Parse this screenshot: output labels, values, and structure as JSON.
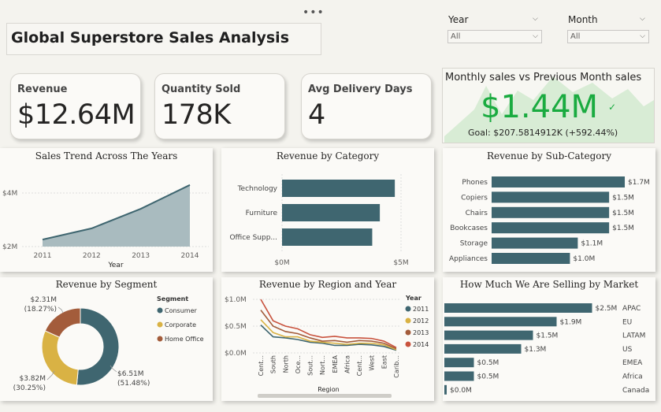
{
  "title": "Global Superstore Sales Analysis",
  "more_icon": "more-options-icon",
  "filters": [
    {
      "label": "Year",
      "value": "All"
    },
    {
      "label": "Month",
      "value": "All"
    }
  ],
  "kpis": [
    {
      "label": "Revenue",
      "value": "$12.64M"
    },
    {
      "label": "Quantity Sold",
      "value": "178K"
    },
    {
      "label": "Avg Delivery Days",
      "value": "4"
    }
  ],
  "monthly": {
    "title": "Monthly sales vs Previous Month sales",
    "value": "$1.44M",
    "goal": "Goal: $207.5814912K (+592.44%)",
    "indicator_icon": "checkmark-icon",
    "accent": "#1aab40"
  },
  "colors": {
    "primary": "#3f6670",
    "yellow": "#d9b244",
    "brown": "#a35c3b",
    "red": "#c9533e",
    "area": "#a9bbbf"
  },
  "chart_data": [
    {
      "id": "sales-trend",
      "type": "area",
      "title": "Sales Trend Across The Years",
      "xlabel": "Year",
      "ylabel": "",
      "x": [
        "2011",
        "2012",
        "2013",
        "2014"
      ],
      "values": [
        2.26,
        2.68,
        3.41,
        4.3
      ],
      "yticks": [
        "$2M",
        "$4M"
      ],
      "ylim": [
        2,
        4
      ]
    },
    {
      "id": "revenue-category",
      "type": "bar",
      "title": "Revenue by Category",
      "categories": [
        "Technology",
        "Furniture",
        "Office Supp..."
      ],
      "values": [
        4.74,
        4.11,
        3.79
      ],
      "xticks": [
        "$0M",
        "$5M"
      ],
      "xlim": [
        0,
        5
      ]
    },
    {
      "id": "revenue-subcategory",
      "type": "bar",
      "title": "Revenue by Sub-Category",
      "categories": [
        "Phones",
        "Copiers",
        "Chairs",
        "Bookcases",
        "Storage",
        "Appliances"
      ],
      "values": [
        1.7,
        1.5,
        1.5,
        1.5,
        1.1,
        1.0
      ],
      "labels": [
        "$1.7M",
        "$1.5M",
        "$1.5M",
        "$1.5M",
        "$1.1M",
        "$1.0M"
      ],
      "xlim": [
        0,
        1.75
      ]
    },
    {
      "id": "revenue-segment",
      "type": "pie",
      "title": "Revenue by Segment",
      "legend_title": "Segment",
      "slices": [
        {
          "name": "Consumer",
          "value": 6.51,
          "percent": 51.48,
          "label": "$6.51M",
          "pct_label": "(51.48%)",
          "color": "#3f6670"
        },
        {
          "name": "Corporate",
          "value": 3.82,
          "percent": 30.25,
          "label": "$3.82M",
          "pct_label": "(30.25%)",
          "color": "#d9b244"
        },
        {
          "name": "Home Office",
          "value": 2.31,
          "percent": 18.27,
          "label": "$2.31M",
          "pct_label": "(18.27%)",
          "color": "#a35c3b"
        }
      ]
    },
    {
      "id": "revenue-region-year",
      "type": "line",
      "title": "Revenue by Region and Year",
      "xlabel": "Region",
      "legend_title": "Year",
      "categories": [
        "Cent...",
        "South",
        "North",
        "Oce...",
        "Sout...",
        "Nort...",
        "EMEA",
        "Africa",
        "Cent...",
        "West",
        "East",
        "Carib..."
      ],
      "yticks": [
        "$0.0M",
        "$0.5M",
        "$1.0M"
      ],
      "ylim": [
        0,
        1.1
      ],
      "series": [
        {
          "name": "2011",
          "color": "#3f6670",
          "values": [
            0.52,
            0.3,
            0.28,
            0.25,
            0.2,
            0.18,
            0.14,
            0.14,
            0.16,
            0.15,
            0.12,
            0.05
          ]
        },
        {
          "name": "2012",
          "color": "#d9b244",
          "values": [
            0.62,
            0.38,
            0.3,
            0.3,
            0.22,
            0.2,
            0.18,
            0.16,
            0.18,
            0.18,
            0.15,
            0.06
          ]
        },
        {
          "name": "2013",
          "color": "#a35c3b",
          "values": [
            0.8,
            0.5,
            0.4,
            0.36,
            0.28,
            0.22,
            0.23,
            0.2,
            0.23,
            0.22,
            0.18,
            0.08
          ]
        },
        {
          "name": "2014",
          "color": "#c9533e",
          "values": [
            1.0,
            0.6,
            0.5,
            0.45,
            0.34,
            0.29,
            0.31,
            0.28,
            0.28,
            0.27,
            0.22,
            0.1
          ]
        }
      ]
    },
    {
      "id": "selling-by-market",
      "type": "bar",
      "title": "How Much We Are Selling by Market",
      "categories": [
        "APAC",
        "EU",
        "LATAM",
        "US",
        "EMEA",
        "Africa",
        "Canada"
      ],
      "values": [
        2.5,
        1.9,
        1.5,
        1.3,
        0.5,
        0.5,
        0.04
      ],
      "labels": [
        "$2.5M",
        "$1.9M",
        "$1.5M",
        "$1.3M",
        "$0.5M",
        "$0.5M",
        "$0.0M"
      ],
      "xlim": [
        0,
        2.8
      ]
    }
  ]
}
